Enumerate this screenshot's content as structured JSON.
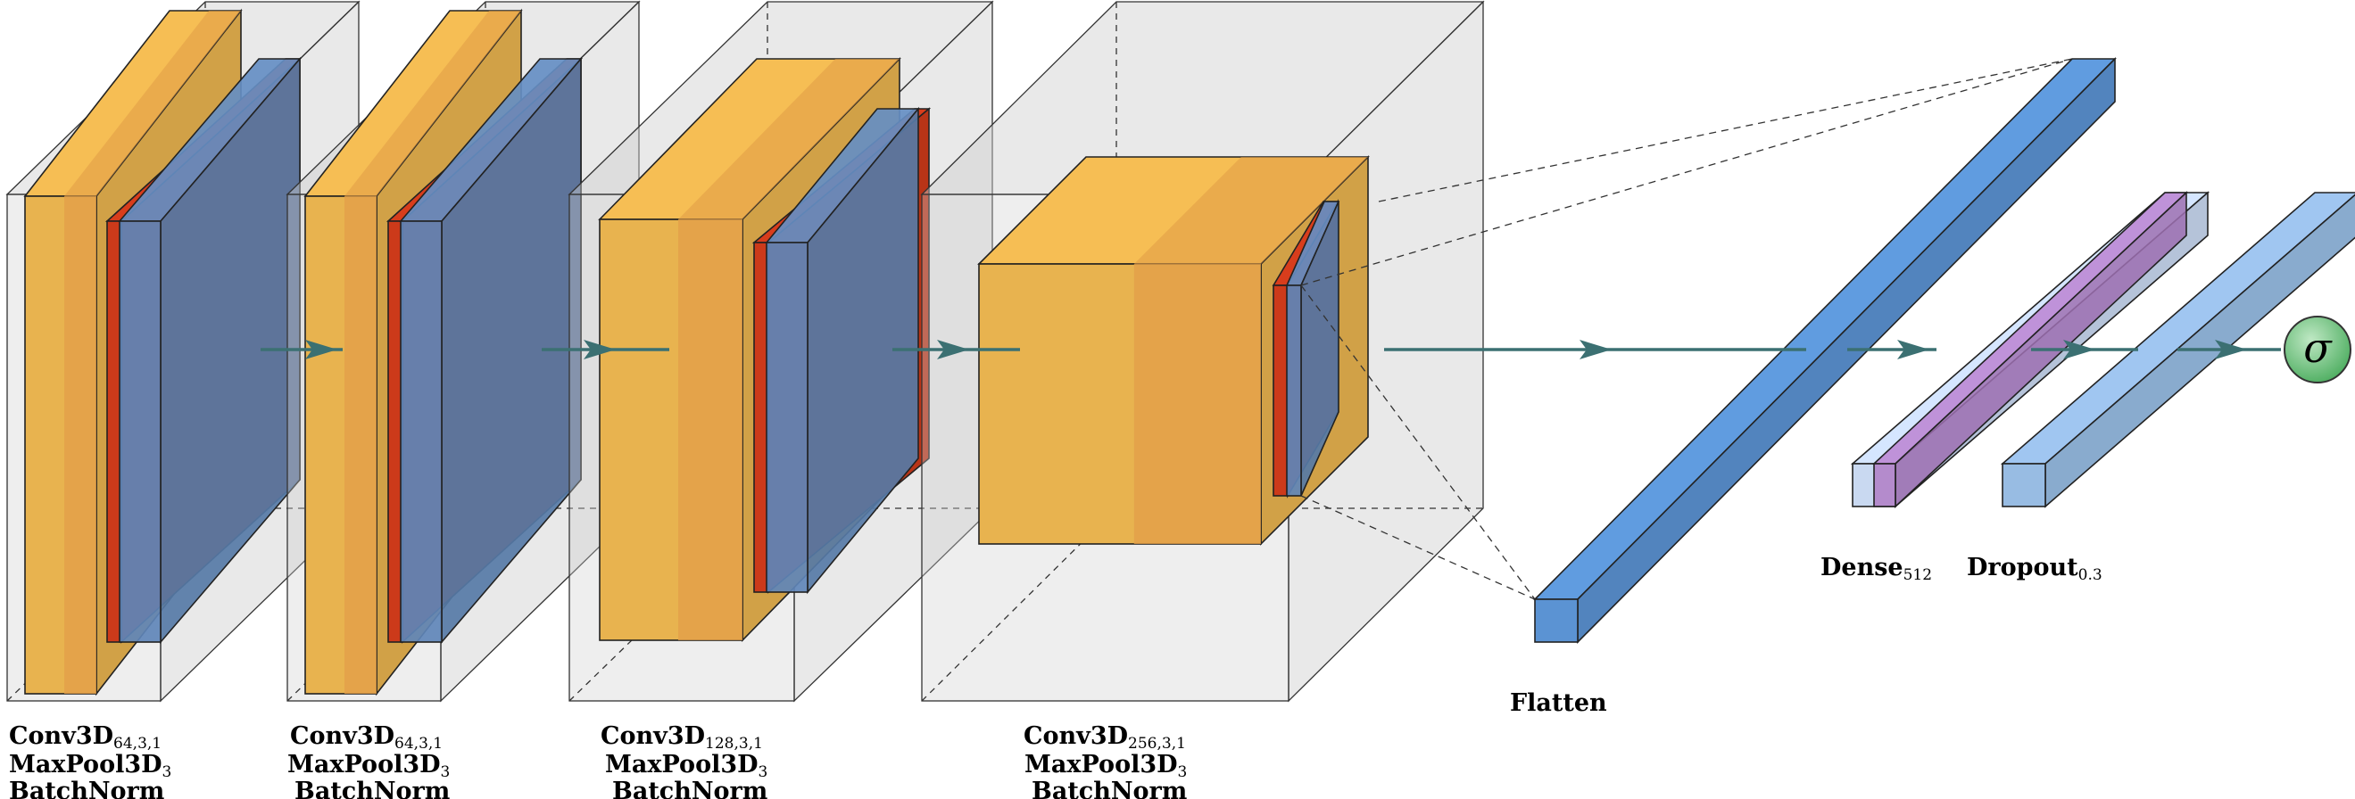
{
  "colors": {
    "container_fill": "#cfcfcf",
    "conv_fill": "#e8b34f",
    "conv_stripe": "#e29f48",
    "batchnorm_fill": "#cc3a1a",
    "pool_fill": "#5f86b8",
    "flatten_fill": "#5b93d3",
    "dense_fill": "#c9d9f1",
    "dense_inner_fill": "#b07cc6",
    "dropout_fill": "#92b8e2",
    "arrow_color": "#3b7072",
    "sigma_fill": "#4cad5f"
  },
  "blocks": [
    {
      "id": "block1",
      "label": {
        "l1_main": "Conv3D",
        "l1_sub": "64,3,1",
        "l2_main": "MaxPool3D",
        "l2_sub": "3",
        "l3_main": "BatchNorm"
      }
    },
    {
      "id": "block2",
      "label": {
        "l1_main": "Conv3D",
        "l1_sub": "64,3,1",
        "l2_main": "MaxPool3D",
        "l2_sub": "3",
        "l3_main": "BatchNorm"
      }
    },
    {
      "id": "block3",
      "label": {
        "l1_main": "Conv3D",
        "l1_sub": "128,3,1",
        "l2_main": "MaxPool3D",
        "l2_sub": "3",
        "l3_main": "BatchNorm"
      }
    },
    {
      "id": "block4",
      "label": {
        "l1_main": "Conv3D",
        "l1_sub": "256,3,1",
        "l2_main": "MaxPool3D",
        "l2_sub": "3",
        "l3_main": "BatchNorm"
      }
    }
  ],
  "layers": {
    "flatten": {
      "label": "Flatten"
    },
    "dense": {
      "label_main": "Dense",
      "label_sub": "512"
    },
    "dropout": {
      "label_main": "Dropout",
      "label_sub": "0.3"
    },
    "output": {
      "symbol": "σ"
    }
  }
}
